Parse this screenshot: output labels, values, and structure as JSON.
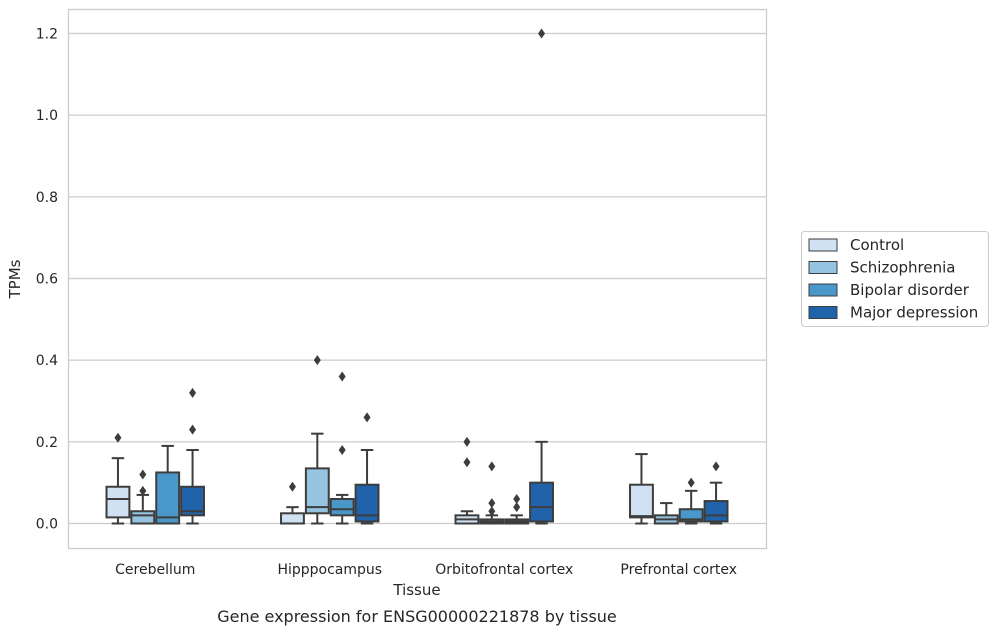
{
  "caption": "Gene expression for ENSG00000221878 by tissue",
  "chart_data": {
    "type": "box",
    "xlabel": "Tissue",
    "ylabel": "TPMs",
    "ylim": [
      -0.06,
      1.26
    ],
    "yticks": [
      "0.0",
      "0.2",
      "0.4",
      "0.6",
      "0.8",
      "1.0",
      "1.2"
    ],
    "ytick_values": [
      0.0,
      0.2,
      0.4,
      0.6,
      0.8,
      1.0,
      1.2
    ],
    "grid": "horizontal",
    "legend_position": "right",
    "categories": [
      "Cerebellum",
      "Hipppocampus",
      "Orbitofrontal cortex",
      "Prefrontal cortex"
    ],
    "series": [
      {
        "name": "Control",
        "color": "#d0e1f2",
        "boxes": [
          {
            "whislo": 0.0,
            "q1": 0.015,
            "med": 0.06,
            "q3": 0.09,
            "whishi": 0.16,
            "fliers": [
              0.21
            ]
          },
          {
            "whislo": 0.0,
            "q1": 0.0,
            "med": 0.0,
            "q3": 0.025,
            "whishi": 0.04,
            "fliers": [
              0.09
            ]
          },
          {
            "whislo": 0.0,
            "q1": 0.0,
            "med": 0.01,
            "q3": 0.02,
            "whishi": 0.03,
            "fliers": [
              0.15,
              0.2
            ]
          },
          {
            "whislo": 0.0,
            "q1": 0.015,
            "med": 0.018,
            "q3": 0.095,
            "whishi": 0.17,
            "fliers": []
          }
        ]
      },
      {
        "name": "Schizophrenia",
        "color": "#94c4df",
        "boxes": [
          {
            "whislo": 0.0,
            "q1": 0.0,
            "med": 0.02,
            "q3": 0.03,
            "whishi": 0.07,
            "fliers": [
              0.08,
              0.12
            ]
          },
          {
            "whislo": 0.0,
            "q1": 0.025,
            "med": 0.04,
            "q3": 0.135,
            "whishi": 0.22,
            "fliers": [
              0.4
            ]
          },
          {
            "whislo": 0.0,
            "q1": 0.0,
            "med": 0.005,
            "q3": 0.01,
            "whishi": 0.02,
            "fliers": [
              0.03,
              0.05,
              0.14
            ]
          },
          {
            "whislo": 0.0,
            "q1": 0.0,
            "med": 0.01,
            "q3": 0.02,
            "whishi": 0.05,
            "fliers": []
          }
        ]
      },
      {
        "name": "Bipolar disorder",
        "color": "#4a98c9",
        "boxes": [
          {
            "whislo": 0.0,
            "q1": 0.0,
            "med": 0.015,
            "q3": 0.125,
            "whishi": 0.19,
            "fliers": []
          },
          {
            "whislo": 0.0,
            "q1": 0.02,
            "med": 0.035,
            "q3": 0.06,
            "whishi": 0.07,
            "fliers": [
              0.18,
              0.36
            ]
          },
          {
            "whislo": 0.0,
            "q1": 0.0,
            "med": 0.005,
            "q3": 0.01,
            "whishi": 0.02,
            "fliers": [
              0.04,
              0.06
            ]
          },
          {
            "whislo": 0.0,
            "q1": 0.005,
            "med": 0.01,
            "q3": 0.035,
            "whishi": 0.08,
            "fliers": [
              0.1
            ]
          }
        ]
      },
      {
        "name": "Major depression",
        "color": "#2163aa",
        "boxes": [
          {
            "whislo": 0.0,
            "q1": 0.02,
            "med": 0.03,
            "q3": 0.09,
            "whishi": 0.18,
            "fliers": [
              0.23,
              0.32
            ]
          },
          {
            "whislo": 0.0,
            "q1": 0.005,
            "med": 0.02,
            "q3": 0.095,
            "whishi": 0.18,
            "fliers": [
              0.26
            ]
          },
          {
            "whislo": 0.0,
            "q1": 0.005,
            "med": 0.04,
            "q3": 0.1,
            "whishi": 0.2,
            "fliers": [
              1.2
            ]
          },
          {
            "whislo": 0.0,
            "q1": 0.005,
            "med": 0.02,
            "q3": 0.055,
            "whishi": 0.1,
            "fliers": [
              0.14
            ]
          }
        ]
      }
    ]
  }
}
